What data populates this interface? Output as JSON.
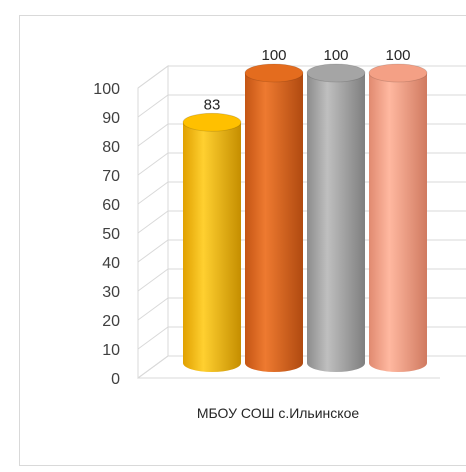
{
  "chart_data": {
    "type": "bar",
    "style": "3d-cylinder",
    "categories": [
      "МБОУ СОШ с.Ильинское"
    ],
    "series": [
      {
        "values": [
          83
        ],
        "color": "#FFC000"
      },
      {
        "values": [
          100
        ],
        "color": "#E46C1E"
      },
      {
        "values": [
          100
        ],
        "color": "#A5A5A5"
      },
      {
        "values": [
          100
        ],
        "color": "#F4A085"
      }
    ],
    "data_labels": [
      "83",
      "100",
      "100",
      "100"
    ],
    "y_ticks": [
      "0",
      "10",
      "20",
      "30",
      "40",
      "50",
      "60",
      "70",
      "80",
      "90",
      "100"
    ],
    "ylim": [
      0,
      100
    ],
    "grid": true,
    "legend": "none",
    "title": "",
    "xlabel": "",
    "ylabel": ""
  }
}
